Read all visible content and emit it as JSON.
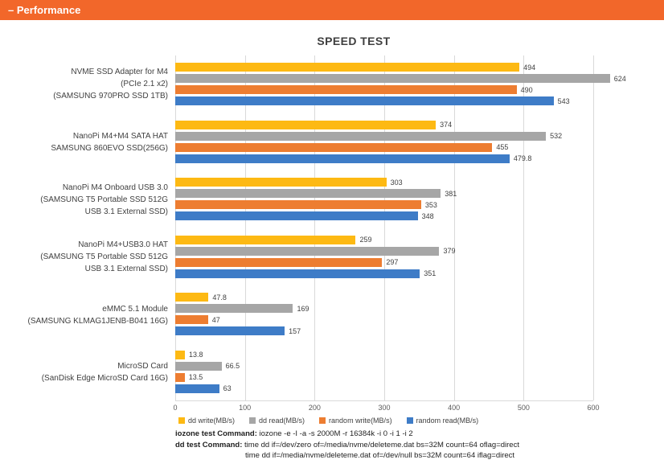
{
  "header": {
    "title": "– Performance",
    "accent_color": "#F2672A"
  },
  "chart_data": {
    "type": "bar",
    "orientation": "horizontal",
    "title": "SPEED TEST",
    "grid": true,
    "legend_position": "bottom",
    "x_axis": {
      "min": 0,
      "max": 600,
      "ticks": [
        0,
        100,
        200,
        300,
        400,
        500,
        600
      ]
    },
    "categories": [
      {
        "lines": [
          "NVME SSD Adapter for M4",
          "(PCIe 2.1 x2)",
          "(SAMSUNG 970PRO SSD 1TB)"
        ]
      },
      {
        "lines": [
          "NanoPi M4+M4 SATA HAT",
          "SAMSUNG 860EVO SSD(256G)"
        ]
      },
      {
        "lines": [
          "NanoPi M4 Onboard USB 3.0",
          "(SAMSUNG T5 Portable SSD 512G",
          "USB 3.1 External SSD)"
        ]
      },
      {
        "lines": [
          "NanoPi M4+USB3.0 HAT",
          "(SAMSUNG T5 Portable SSD 512G",
          "USB 3.1 External SSD)"
        ]
      },
      {
        "lines": [
          "eMMC 5.1 Module",
          "(SAMSUNG KLMAG1JENB-B041 16G)"
        ]
      },
      {
        "lines": [
          "MicroSD Card",
          "(SanDisk Edge MicroSD Card 16G)"
        ]
      }
    ],
    "series": [
      {
        "name": "dd write(MB/s)",
        "color": "#FDB913",
        "values": [
          494,
          374,
          303,
          259,
          47.8,
          13.8
        ]
      },
      {
        "name": "dd read(MB/s)",
        "color": "#A6A6A6",
        "values": [
          624,
          532,
          381,
          379,
          169,
          66.5
        ]
      },
      {
        "name": "random write(MB/s)",
        "color": "#ED7D31",
        "values": [
          490,
          455,
          353,
          297,
          47,
          13.5
        ]
      },
      {
        "name": "random read(MB/s)",
        "color": "#3E7CC7",
        "values": [
          543,
          479.8,
          348,
          351,
          157,
          63
        ]
      }
    ]
  },
  "commands": {
    "iozone_label": "iozone test Command:",
    "iozone_value": "iozone -e -I -a -s 2000M -r 16384k -i 0 -i 1 -i 2",
    "dd_label": "dd test Command:",
    "dd_value_line1": "time dd if=/dev/zero of=/media/nvme/deleteme.dat bs=32M count=64 oflag=direct",
    "dd_value_line2": "time dd if=/media/nvme/deleteme.dat of=/dev/null bs=32M count=64 iflag=direct"
  }
}
